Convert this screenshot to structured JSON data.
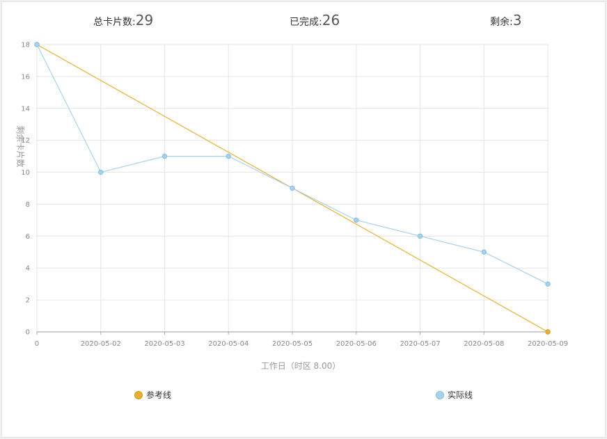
{
  "summary": {
    "total_label": "总卡片数:",
    "total_value": "29",
    "done_label": "已完成:",
    "done_value": "26",
    "remaining_label": "剩余:",
    "remaining_value": "3"
  },
  "chart_data": {
    "type": "line",
    "categories": [
      "0",
      "2020-05-02",
      "2020-05-03",
      "2020-05-04",
      "2020-05-05",
      "2020-05-06",
      "2020-05-07",
      "2020-05-08",
      "2020-05-09"
    ],
    "series": [
      {
        "name": "参考线",
        "values": [
          18,
          15.75,
          13.5,
          11.25,
          9,
          6.75,
          4.5,
          2.25,
          0
        ],
        "color": "#e8b030"
      },
      {
        "name": "实际线",
        "values": [
          18,
          10,
          11,
          11,
          9,
          7,
          6,
          5,
          3
        ],
        "color": "#a6d2ee"
      }
    ],
    "xlabel": "工作日（时区 8.00）",
    "ylabel": "剩余卡片数",
    "ylim": [
      0,
      18
    ],
    "yticks": [
      0,
      2,
      4,
      6,
      8,
      10,
      12,
      14,
      16,
      18
    ],
    "grid": true,
    "legend": "bottom"
  }
}
